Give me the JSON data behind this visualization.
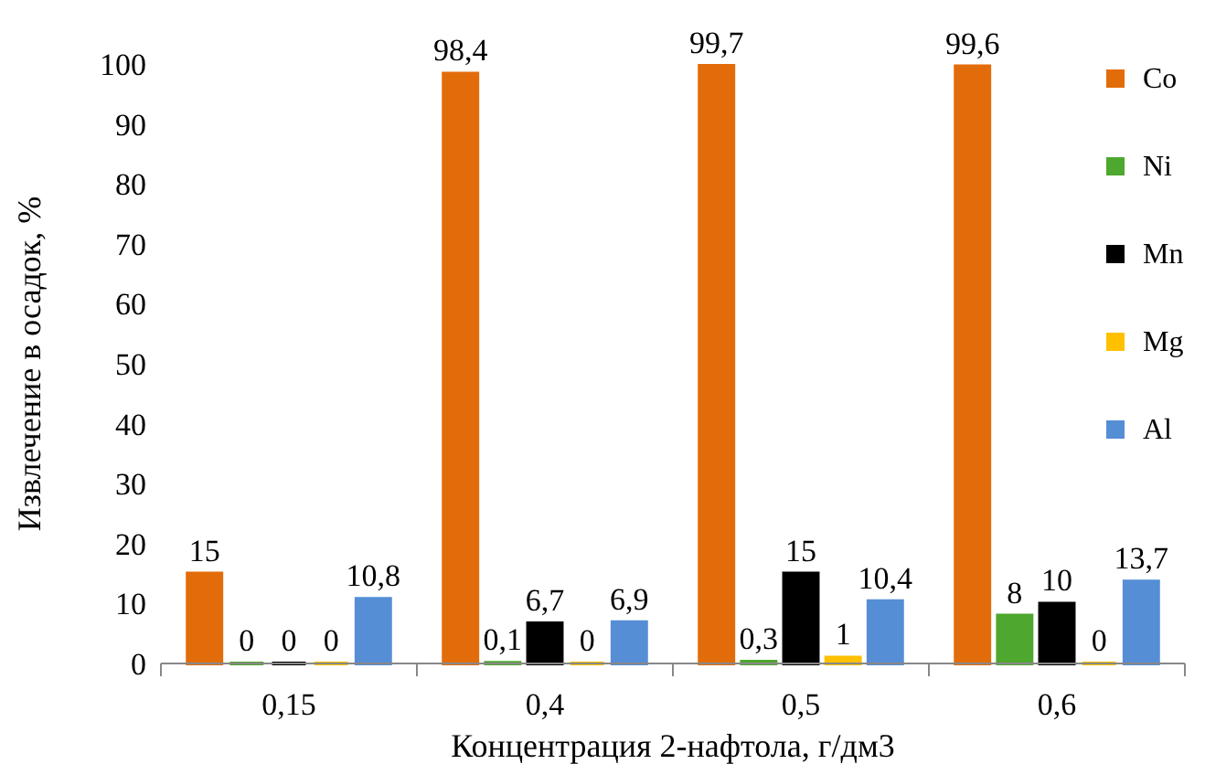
{
  "chart_data": {
    "type": "bar",
    "ylabel": "Извлечение в осадок, %",
    "xlabel": "Концентрация 2-нафтола, г/дм3",
    "categories": [
      "0,15",
      "0,4",
      "0,5",
      "0,6"
    ],
    "series": [
      {
        "name": "Co",
        "color": "#e36c0a",
        "values": [
          15,
          98.4,
          99.7,
          99.6
        ],
        "value_labels": [
          "15",
          "98,4",
          "99,7",
          "99,6"
        ]
      },
      {
        "name": "Ni",
        "color": "#4ea72e",
        "values": [
          0,
          0.1,
          0.3,
          8
        ],
        "value_labels": [
          "0",
          "0,1",
          "0,3",
          "8"
        ]
      },
      {
        "name": "Mn",
        "color": "#000000",
        "values": [
          0,
          6.7,
          15,
          10
        ],
        "value_labels": [
          "0",
          "6,7",
          "15",
          "10"
        ]
      },
      {
        "name": "Mg",
        "color": "#ffc000",
        "values": [
          0,
          0,
          1,
          0
        ],
        "value_labels": [
          "0",
          "0",
          "1",
          "0"
        ]
      },
      {
        "name": "Al",
        "color": "#558ed5",
        "values": [
          10.8,
          6.9,
          10.4,
          13.7
        ],
        "value_labels": [
          "10,8",
          "6,9",
          "10,4",
          "13,7"
        ]
      }
    ],
    "ylim": [
      0,
      100
    ],
    "yticks": [
      0,
      10,
      20,
      30,
      40,
      50,
      60,
      70,
      80,
      90,
      100
    ],
    "grid": false,
    "legend": "right"
  }
}
